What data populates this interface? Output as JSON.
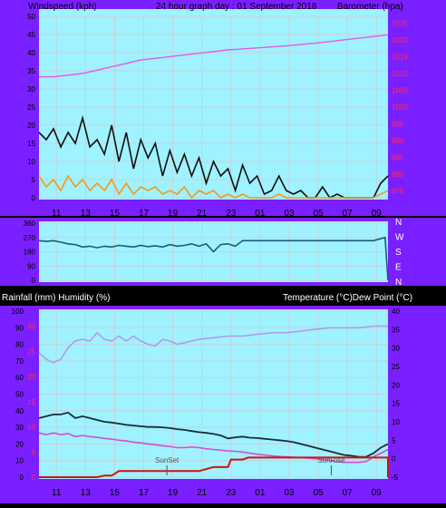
{
  "colors": {
    "frame": "#7a1fff",
    "plot": "#9ff2ff",
    "grid": "#c8d1d8",
    "wind_gust": "#111111",
    "wind_avg": "#f49a1c",
    "wind_trace": "#9be09b",
    "baro": "#e35ae9",
    "direction": "#1d5a7a",
    "humidity": "#b39ae9",
    "temperature": "#1a2c38",
    "dewpoint": "#d24fd6",
    "rain": "#d11212",
    "left_ticks": "#ff2d64",
    "right_ticks": "#000000"
  },
  "header": {
    "left": "Windspeed (kph)",
    "center": "24 hour graph day : 01 September 2018",
    "right": "Barometer (hpa)"
  },
  "middle_right_labels": [
    "N",
    "W",
    "S",
    "E",
    "N"
  ],
  "bottom_header": {
    "left": "Rainfall (mm)  Humidity (%)",
    "right": "Temperature (°C)Dew Point (°C)"
  },
  "x_ticks": [
    "11",
    "13",
    "15",
    "17",
    "19",
    "21",
    "23",
    "01",
    "03",
    "05",
    "07",
    "09"
  ],
  "chart_data": [
    {
      "type": "line",
      "name": "wind_and_barometer",
      "x_range": [
        0,
        24
      ],
      "left_axis": {
        "ticks": [
          0,
          5,
          10,
          15,
          20,
          25,
          30,
          35,
          40,
          45,
          50
        ],
        "ylim": [
          0,
          50
        ]
      },
      "right_axis": {
        "ticks": [
          975,
          980,
          985,
          990,
          995,
          1000,
          1005,
          1010,
          1015,
          1020,
          1025
        ],
        "ylim": [
          973,
          1027
        ]
      },
      "series": [
        {
          "key": "gust",
          "axis": "left",
          "x": [
            0,
            0.5,
            1,
            1.5,
            2,
            2.5,
            3,
            3.5,
            4,
            4.5,
            5,
            5.5,
            6,
            6.5,
            7,
            7.5,
            8,
            8.5,
            9,
            9.5,
            10,
            10.5,
            11,
            11.5,
            12,
            12.5,
            13,
            13.5,
            14,
            14.5,
            15,
            15.5,
            16,
            16.5,
            17,
            17.5,
            18,
            18.5,
            19,
            19.5,
            20,
            20.5,
            21,
            21.5,
            22,
            22.5,
            23,
            23.5,
            24
          ],
          "y": [
            18,
            16,
            19,
            14,
            18,
            15,
            22,
            14,
            16,
            12,
            20,
            10,
            18,
            8,
            16,
            11,
            15,
            6,
            13,
            7,
            12,
            6,
            11,
            4,
            10,
            6,
            8,
            2,
            9,
            4,
            6,
            1,
            2,
            6,
            2,
            1,
            2,
            0,
            0,
            3,
            0,
            1,
            0,
            0,
            0,
            0,
            0,
            4,
            6
          ]
        },
        {
          "key": "average",
          "axis": "left",
          "x": [
            0,
            0.5,
            1,
            1.5,
            2,
            2.5,
            3,
            3.5,
            4,
            4.5,
            5,
            5.5,
            6,
            6.5,
            7,
            7.5,
            8,
            8.5,
            9,
            9.5,
            10,
            10.5,
            11,
            11.5,
            12,
            12.5,
            13,
            13.5,
            14,
            14.5,
            15,
            15.5,
            16,
            16.5,
            17,
            17.5,
            18,
            18.5,
            19,
            19.5,
            20,
            20.5,
            21,
            21.5,
            22,
            22.5,
            23,
            23.5,
            24
          ],
          "y": [
            6,
            3,
            5,
            2,
            6,
            3,
            5,
            2,
            4,
            2,
            5,
            1,
            4,
            1,
            3,
            2,
            3,
            1,
            2,
            1,
            3,
            0,
            2,
            1,
            2,
            0,
            1,
            0,
            1,
            0,
            0,
            0,
            0,
            1,
            0,
            0,
            0,
            0,
            0,
            0,
            0,
            0,
            0,
            0,
            0,
            0,
            0,
            1,
            2
          ]
        },
        {
          "key": "barometer",
          "axis": "right",
          "x": [
            0,
            1,
            2,
            3,
            4,
            5,
            6,
            7,
            8,
            9,
            10,
            11,
            12,
            13,
            14,
            15,
            16,
            17,
            18,
            19,
            20,
            21,
            22,
            23,
            24
          ],
          "y": [
            1009,
            1009,
            1009.5,
            1010,
            1011,
            1012,
            1013,
            1014,
            1014.5,
            1015,
            1015.5,
            1016,
            1016.5,
            1017,
            1017.3,
            1017.6,
            1017.9,
            1018.2,
            1018.6,
            1019,
            1019.5,
            1020,
            1020.5,
            1021,
            1021.5
          ]
        }
      ]
    },
    {
      "type": "line",
      "name": "wind_direction",
      "x_range": [
        0,
        24
      ],
      "left_axis": {
        "ticks": [
          360,
          270,
          180,
          90,
          0
        ],
        "ylim": [
          0,
          360
        ]
      },
      "series": [
        {
          "key": "direction",
          "x": [
            0,
            0.5,
            1,
            1.5,
            2,
            2.5,
            3,
            3.5,
            4,
            4.5,
            5,
            5.5,
            6,
            6.5,
            7,
            7.5,
            8,
            8.5,
            9,
            9.5,
            10,
            10.5,
            11,
            11.5,
            12,
            12.5,
            13,
            13.5,
            14,
            15,
            16,
            17,
            18,
            19,
            20,
            21,
            22,
            23,
            23.8,
            24
          ],
          "y": [
            250,
            245,
            250,
            240,
            230,
            225,
            210,
            215,
            205,
            215,
            210,
            220,
            215,
            210,
            220,
            212,
            218,
            210,
            225,
            215,
            220,
            230,
            215,
            230,
            180,
            225,
            230,
            215,
            250,
            250,
            250,
            250,
            250,
            250,
            250,
            250,
            250,
            250,
            270,
            0
          ]
        }
      ]
    },
    {
      "type": "line",
      "name": "rain_humidity_temperature",
      "x_range": [
        0,
        24
      ],
      "left_axis": {
        "ticks": [
          0,
          10,
          20,
          30,
          40,
          50,
          60,
          70,
          80,
          90,
          100
        ],
        "ylim": [
          0,
          100
        ]
      },
      "left_red_ticks": {
        "ticks": [
          0,
          5,
          10,
          15,
          20,
          25,
          30
        ],
        "labels": [
          "0",
          "5",
          "10",
          "15",
          "20",
          "25",
          "30"
        ]
      },
      "right_axis": {
        "ticks": [
          -5,
          0,
          5,
          10,
          15,
          20,
          25,
          30,
          35,
          40
        ],
        "ylim": [
          -5,
          40
        ]
      },
      "annotations": [
        {
          "text": "SunSet",
          "x": 8.8
        },
        {
          "text": "SunRise",
          "x": 20.1
        }
      ],
      "series": [
        {
          "key": "humidity",
          "axis": "left",
          "x": [
            0,
            0.5,
            1,
            1.5,
            2,
            2.5,
            3,
            3.5,
            4,
            4.5,
            5,
            5.5,
            6,
            6.5,
            7,
            7.5,
            8,
            8.5,
            9,
            9.5,
            10,
            10.5,
            11,
            12,
            13,
            14,
            15,
            16,
            17,
            18,
            19,
            20,
            21,
            22,
            23,
            24
          ],
          "y": [
            75,
            71,
            69,
            71,
            78,
            82,
            83,
            82,
            87,
            83,
            82,
            85,
            82,
            85,
            82,
            80,
            79,
            83,
            82,
            80,
            81,
            82,
            83,
            84,
            85,
            85,
            86,
            87,
            87,
            88,
            89,
            90,
            90,
            90,
            91,
            91
          ]
        },
        {
          "key": "temperature",
          "axis": "right",
          "x": [
            0,
            0.5,
            1,
            1.5,
            2,
            2.5,
            3,
            3.5,
            4,
            4.5,
            5,
            5.5,
            6,
            6.5,
            7,
            7.5,
            8,
            8.5,
            9,
            9.5,
            10,
            10.5,
            11,
            11.5,
            12,
            12.5,
            13,
            13.5,
            14,
            14.5,
            15,
            15.5,
            16,
            16.5,
            17,
            17.5,
            18,
            18.5,
            19,
            19.5,
            20,
            20.5,
            21,
            21.5,
            22,
            22.5,
            23,
            23.5,
            24
          ],
          "y": [
            11,
            11.5,
            12,
            12,
            12.5,
            11,
            11.5,
            11,
            10.5,
            10,
            9.8,
            9.5,
            9.2,
            9.0,
            8.8,
            8.6,
            8.6,
            8.5,
            8.3,
            8.0,
            7.8,
            7.5,
            7.2,
            7.0,
            6.7,
            6.3,
            5.5,
            5.8,
            6.0,
            5.7,
            5.6,
            5.4,
            5.2,
            5.0,
            4.8,
            4.5,
            4.0,
            3.5,
            3.0,
            2.5,
            2.0,
            1.5,
            1.0,
            0.8,
            0.5,
            0.5,
            1.5,
            3.0,
            4.0
          ]
        },
        {
          "key": "dewpoint",
          "axis": "right",
          "x": [
            0,
            0.5,
            1,
            1.5,
            2,
            2.5,
            3,
            3.5,
            4,
            4.5,
            5,
            5.5,
            6,
            6.5,
            7,
            7.5,
            8,
            8.5,
            9,
            9.5,
            10,
            10.5,
            11,
            11.5,
            12,
            12.5,
            13,
            13.5,
            14,
            14.5,
            15,
            15.5,
            16,
            16.5,
            17,
            17.5,
            18,
            18.5,
            19,
            19.5,
            20,
            20.5,
            21,
            21.5,
            22,
            22.5,
            23,
            23.5,
            24
          ],
          "y": [
            7,
            6.5,
            7,
            6.5,
            6.8,
            6,
            6.3,
            6,
            5.8,
            5.5,
            5.3,
            5.0,
            4.8,
            4.5,
            4.3,
            4.0,
            3.8,
            3.5,
            3.3,
            3.0,
            3.0,
            3.2,
            3.0,
            2.7,
            2.5,
            2.3,
            2.1,
            2.0,
            1.8,
            1.5,
            1.2,
            1.0,
            0.8,
            0.6,
            0.5,
            0.4,
            0.3,
            0.2,
            0,
            -0.2,
            -0.5,
            -0.8,
            -1.0,
            -1.0,
            -1.0,
            -0.8,
            0.5,
            1.5,
            2.5
          ]
        },
        {
          "key": "rain",
          "axis": "left_red",
          "x": [
            0,
            4,
            4.5,
            5,
            5.5,
            11,
            12,
            13,
            13.2,
            14,
            14.4,
            20,
            21,
            22,
            24,
            24
          ],
          "y": [
            0,
            0,
            0.3,
            0.3,
            1.2,
            1.2,
            2,
            2,
            3.5,
            3.5,
            3.9,
            3.9,
            3.9,
            3.9,
            3.9,
            0
          ]
        }
      ]
    }
  ]
}
